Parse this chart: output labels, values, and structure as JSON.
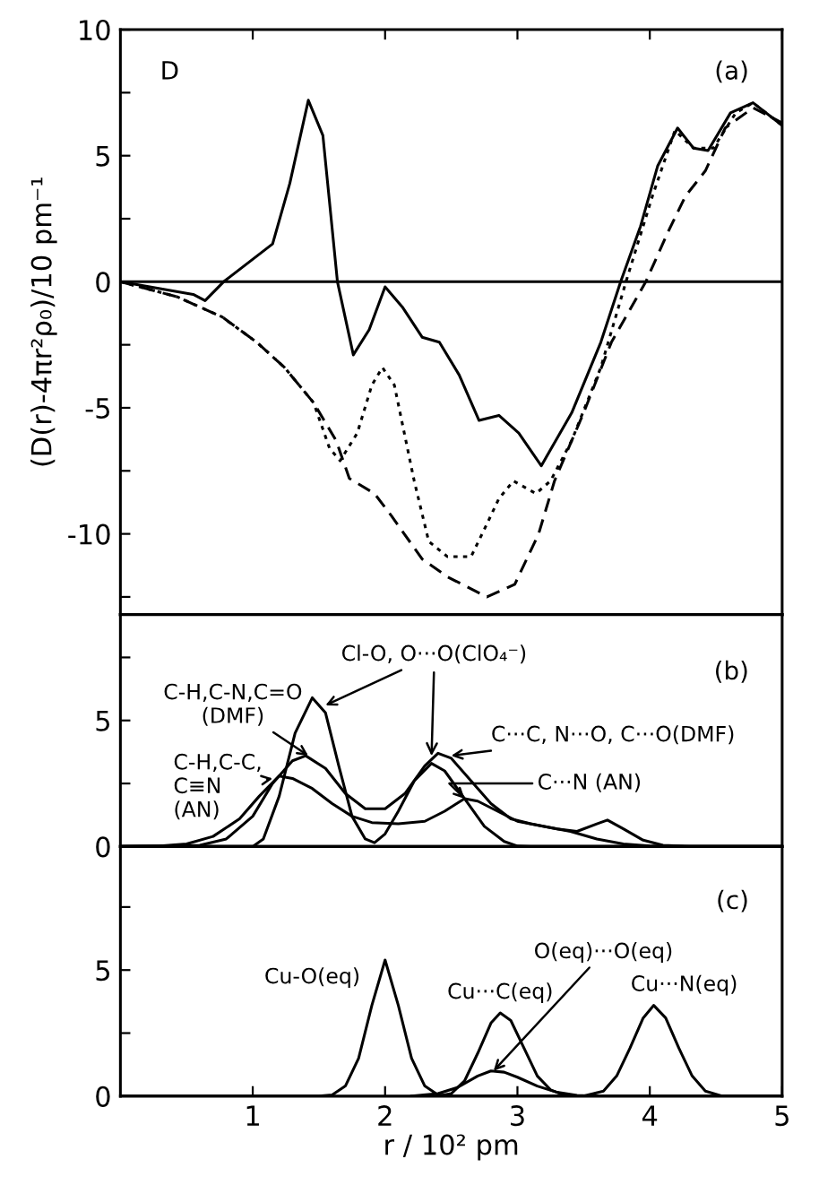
{
  "chart_data": [
    {
      "type": "line",
      "ylabel": "(D(r)-4πr²ρ₀)/10 pm⁻¹",
      "xlim": [
        0,
        5
      ],
      "xticks": [
        1,
        2,
        3,
        4,
        5
      ],
      "ylim": [
        -13.2,
        10
      ],
      "yticks": [
        {
          "value": -12.5,
          "label": null
        },
        -10,
        {
          "value": -7.5,
          "label": null
        },
        -5,
        {
          "value": -2.5,
          "label": null
        },
        0,
        {
          "value": 2.5,
          "label": null
        },
        5,
        {
          "value": 7.5,
          "label": null
        },
        10
      ],
      "tick_labels": "y",
      "ref_lines": [
        {
          "axis": "y",
          "value": 0,
          "color": "#000000"
        }
      ],
      "annotations": [
        "D",
        "(a)"
      ],
      "series": [
        {
          "color": "#000000",
          "line_style": "solid",
          "x": [
            0,
            0.55,
            0.64,
            0.78,
            1.15,
            1.28,
            1.42,
            1.53,
            1.64,
            1.76,
            1.88,
            2.0,
            2.13,
            2.28,
            2.41,
            2.56,
            2.71,
            2.86,
            3.01,
            3.18,
            3.41,
            3.63,
            3.78,
            3.93,
            4.06,
            4.21,
            4.33,
            4.44,
            4.61,
            4.78,
            5.0
          ],
          "values": [
            0,
            -0.5,
            -0.75,
            0,
            1.5,
            3.9,
            7.2,
            5.8,
            0,
            -2.9,
            -1.9,
            -0.2,
            -1.0,
            -2.2,
            -2.4,
            -3.7,
            -5.5,
            -5.3,
            -6.0,
            -7.3,
            -5.2,
            -2.4,
            0,
            2.2,
            4.6,
            6.1,
            5.3,
            5.2,
            6.7,
            7.1,
            6.2
          ]
        },
        {
          "color": "#000000",
          "line_style": "dashed",
          "x": [
            0,
            0.43,
            0.77,
            1.03,
            1.24,
            1.46,
            1.63,
            1.73,
            1.92,
            2.05,
            2.28,
            2.47,
            2.77,
            2.98,
            3.16,
            3.28,
            3.5,
            3.71,
            3.97,
            4.14,
            4.27,
            4.42,
            4.57,
            4.78,
            5.0
          ],
          "values": [
            0,
            -0.6,
            -1.4,
            -2.4,
            -3.4,
            -4.8,
            -6.3,
            -7.8,
            -8.4,
            -9.3,
            -11.0,
            -11.7,
            -12.5,
            -12.0,
            -10.0,
            -7.9,
            -5.2,
            -2.4,
            0,
            2.0,
            3.4,
            4.4,
            6.1,
            6.9,
            6.3
          ]
        },
        {
          "color": "#000000",
          "line_style": "dotted",
          "x": [
            0,
            0.43,
            0.77,
            1.03,
            1.24,
            1.46,
            1.58,
            1.66,
            1.79,
            1.9,
            1.98,
            2.07,
            2.22,
            2.33,
            2.47,
            2.65,
            2.77,
            2.86,
            2.97,
            3.14,
            3.25,
            3.41,
            3.63,
            3.82,
            4.02,
            4.19,
            4.33,
            4.48,
            4.65,
            4.78,
            5.0
          ],
          "values": [
            0,
            -0.6,
            -1.4,
            -2.4,
            -3.4,
            -4.8,
            -6.6,
            -7.1,
            -6.0,
            -4.1,
            -3.4,
            -4.1,
            -7.9,
            -10.3,
            -10.9,
            -10.9,
            -9.6,
            -8.6,
            -7.9,
            -8.4,
            -7.9,
            -6.3,
            -3.4,
            0,
            3.4,
            6.0,
            5.3,
            5.3,
            6.7,
            7.1,
            6.2
          ]
        }
      ]
    },
    {
      "type": "line",
      "xlim": [
        0,
        5
      ],
      "xticks": [
        1,
        2,
        3,
        4,
        5
      ],
      "ylim": [
        0,
        9.2
      ],
      "yticks": [
        0,
        {
          "value": 2.5,
          "label": null
        },
        5,
        {
          "value": 7.5,
          "label": null
        }
      ],
      "tick_labels": "y",
      "annotations": [
        "(b)",
        {
          "text": "C-H,C-N,C=O\n(DMF)",
          "x": 1.42,
          "y": 3.6
        },
        {
          "text": "Cl-O, O···O(ClO₄⁻)",
          "x": 1.55,
          "y": 5.6
        },
        {
          "text": "C···C, N···O, C···O(DMF)",
          "x": 2.5,
          "y": 3.6
        },
        {
          "text": "C···N (AN)",
          "x": 2.6,
          "y": 1.9
        },
        {
          "text": "C-H,C-C,\nC≡N\n(AN)",
          "x": 1.15,
          "y": 2.7
        }
      ],
      "series": [
        {
          "color": "#000000",
          "line_style": "solid",
          "x": [
            0,
            0.3,
            0.5,
            0.7,
            0.9,
            1.05,
            1.2,
            1.3,
            1.45,
            1.6,
            1.75,
            1.9,
            2.1,
            2.3,
            2.45,
            2.6,
            2.7,
            2.85,
            3.0,
            3.2,
            3.4,
            3.6,
            3.8,
            4.0,
            4.3,
            5.0
          ],
          "values": [
            0,
            0.02,
            0.1,
            0.4,
            1.1,
            2.0,
            2.8,
            2.7,
            2.3,
            1.7,
            1.2,
            0.95,
            0.9,
            1.0,
            1.4,
            1.9,
            1.8,
            1.4,
            1.0,
            0.8,
            0.6,
            0.3,
            0.1,
            0.02,
            0,
            0
          ]
        },
        {
          "color": "#000000",
          "line_style": "solid",
          "x": [
            0,
            0.6,
            0.8,
            1.0,
            1.15,
            1.3,
            1.4,
            1.55,
            1.7,
            1.85,
            2.0,
            2.15,
            2.3,
            2.4,
            2.5,
            2.65,
            2.8,
            2.95,
            3.1,
            3.3,
            3.45,
            3.6,
            3.68,
            3.8,
            3.95,
            4.1,
            4.3,
            5.0
          ],
          "values": [
            0,
            0.05,
            0.3,
            1.2,
            2.5,
            3.4,
            3.6,
            3.1,
            2.1,
            1.5,
            1.5,
            2.1,
            3.2,
            3.7,
            3.5,
            2.6,
            1.7,
            1.1,
            0.9,
            0.7,
            0.6,
            0.9,
            1.05,
            0.7,
            0.25,
            0.05,
            0,
            0
          ]
        },
        {
          "color": "#000000",
          "line_style": "solid",
          "x": [
            0,
            1.0,
            1.08,
            1.2,
            1.32,
            1.45,
            1.55,
            1.65,
            1.75,
            1.85,
            1.92,
            2.0,
            2.1,
            2.22,
            2.35,
            2.45,
            2.6,
            2.75,
            2.9,
            3.0,
            3.1,
            5.0
          ],
          "values": [
            0,
            0,
            0.3,
            2.0,
            4.5,
            5.9,
            5.3,
            3.2,
            1.2,
            0.3,
            0.15,
            0.5,
            1.4,
            2.6,
            3.3,
            3.0,
            1.9,
            0.8,
            0.2,
            0.02,
            0,
            0
          ]
        }
      ]
    },
    {
      "type": "line",
      "xlabel": "r / 10² pm",
      "xlim": [
        0,
        5
      ],
      "xticks": [
        1,
        2,
        3,
        4,
        5
      ],
      "ylim": [
        0,
        9.9
      ],
      "yticks": [
        0,
        {
          "value": 2.5,
          "label": null
        },
        5,
        {
          "value": 7.5,
          "label": null
        }
      ],
      "annotations": [
        "(c)",
        "Cu-O(eq)",
        "Cu···C(eq)",
        {
          "text": "O(eq)···O(eq)",
          "x": 2.82,
          "y": 1.0
        },
        "Cu···N(eq)"
      ],
      "series": [
        {
          "color": "#000000",
          "line_style": "solid",
          "x": [
            0,
            1.5,
            1.6,
            1.7,
            1.8,
            1.9,
            2.0,
            2.1,
            2.2,
            2.3,
            2.4,
            2.5,
            5.0
          ],
          "values": [
            0,
            0,
            0.05,
            0.4,
            1.5,
            3.6,
            5.4,
            3.6,
            1.5,
            0.4,
            0.05,
            0,
            0
          ]
        },
        {
          "color": "#000000",
          "line_style": "solid",
          "x": [
            2.4,
            2.5,
            2.6,
            2.7,
            2.8,
            2.87,
            2.95,
            3.05,
            3.15,
            3.25,
            3.35,
            3.45
          ],
          "values": [
            0,
            0.1,
            0.6,
            1.7,
            2.9,
            3.3,
            3.0,
            1.9,
            0.8,
            0.25,
            0.05,
            0
          ]
        },
        {
          "color": "#000000",
          "line_style": "solid",
          "x": [
            2.2,
            2.4,
            2.55,
            2.7,
            2.8,
            2.9,
            3.0,
            3.15,
            3.3,
            3.45,
            3.6
          ],
          "values": [
            0,
            0.1,
            0.35,
            0.8,
            1.0,
            0.95,
            0.75,
            0.4,
            0.15,
            0.03,
            0
          ]
        },
        {
          "color": "#000000",
          "line_style": "solid",
          "x": [
            3.5,
            3.65,
            3.75,
            3.85,
            3.95,
            4.03,
            4.12,
            4.22,
            4.32,
            4.42,
            4.55,
            5.0
          ],
          "values": [
            0,
            0.2,
            0.8,
            1.9,
            3.1,
            3.6,
            3.1,
            1.9,
            0.8,
            0.2,
            0,
            0
          ]
        }
      ]
    }
  ]
}
